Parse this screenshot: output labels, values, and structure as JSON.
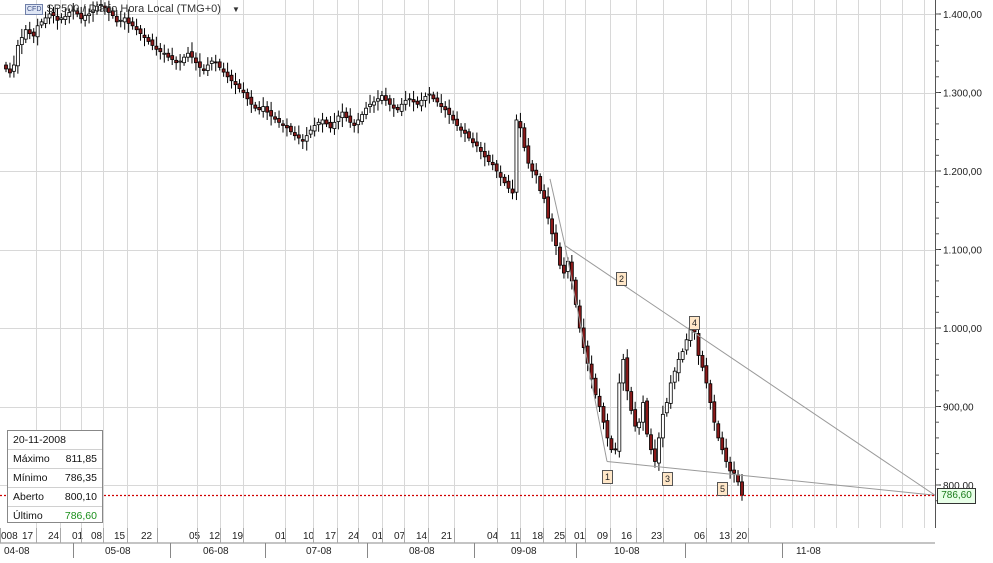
{
  "header": {
    "badge": "CFD",
    "title": "SP500 / Diario Hora Local (TMG+0)",
    "dropdown_icon": "caret-down-icon"
  },
  "info_panel": {
    "date": "20-11-2008",
    "rows": [
      {
        "label": "Máximo",
        "value": "811,85"
      },
      {
        "label": "Mínimo",
        "value": "786,35"
      },
      {
        "label": "Aberto",
        "value": "800,10"
      },
      {
        "label": "Último",
        "value": "786,60"
      }
    ]
  },
  "last_price_label": "786,60",
  "wave_labels": [
    "1",
    "2",
    "3",
    "4",
    "5"
  ],
  "colors": {
    "up_candle": "#ffffff",
    "down_candle": "#8b1a1a",
    "wick": "#000000",
    "grid": "#d8d8d8",
    "trendline": "#9a9a9a",
    "last_price_line": "#d00000"
  },
  "chart_data": {
    "type": "candlestick",
    "title": "SP500 / Diario Hora Local (TMG+0)",
    "xlabel": "",
    "ylabel": "",
    "ylim": [
      770,
      1420
    ],
    "y_ticks": [
      {
        "value": 1400,
        "label": "1.400,00"
      },
      {
        "value": 1300,
        "label": "1.300,00"
      },
      {
        "value": 1200,
        "label": "1.200,00"
      },
      {
        "value": 1100,
        "label": "1.100,00"
      },
      {
        "value": 1000,
        "label": "1.000,00"
      },
      {
        "value": 900,
        "label": "900,00"
      },
      {
        "value": 800,
        "label": "800,00"
      }
    ],
    "x_day_ticks": [
      "008",
      "17",
      "24",
      "01",
      "08",
      "15",
      "22",
      "05",
      "12",
      "19",
      "01",
      "10",
      "17",
      "24",
      "01",
      "07",
      "14",
      "21",
      "04",
      "11",
      "18",
      "25",
      "01",
      "09",
      "16",
      "23",
      "06",
      "13",
      "20"
    ],
    "x_month_ticks": [
      "04-08",
      "05-08",
      "06-08",
      "07-08",
      "08-08",
      "09-08",
      "10-08",
      "11-08"
    ],
    "last_price": 786.6,
    "series": [
      {
        "name": "SP500",
        "close": [
          1330,
          1325,
          1335,
          1360,
          1370,
          1380,
          1375,
          1372,
          1385,
          1390,
          1395,
          1400,
          1398,
          1392,
          1395,
          1397,
          1402,
          1405,
          1400,
          1394,
          1398,
          1400,
          1405,
          1410,
          1412,
          1408,
          1402,
          1398,
          1390,
          1392,
          1395,
          1388,
          1385,
          1380,
          1375,
          1370,
          1365,
          1360,
          1355,
          1352,
          1350,
          1345,
          1342,
          1338,
          1340,
          1345,
          1350,
          1345,
          1338,
          1332,
          1328,
          1335,
          1340,
          1338,
          1332,
          1326,
          1320,
          1315,
          1310,
          1305,
          1300,
          1292,
          1285,
          1280,
          1278,
          1282,
          1275,
          1270,
          1266,
          1262,
          1258,
          1255,
          1250,
          1245,
          1242,
          1238,
          1245,
          1252,
          1258,
          1262,
          1265,
          1260,
          1255,
          1262,
          1270,
          1275,
          1268,
          1262,
          1258,
          1265,
          1272,
          1280,
          1285,
          1288,
          1292,
          1296,
          1290,
          1285,
          1280,
          1278,
          1285,
          1290,
          1292,
          1288,
          1285,
          1290,
          1295,
          1298,
          1292,
          1288,
          1282,
          1278,
          1272,
          1265,
          1258,
          1252,
          1248,
          1242,
          1236,
          1232,
          1225,
          1218,
          1212,
          1208,
          1200,
          1192,
          1185,
          1178,
          1172,
          1265,
          1255,
          1230,
          1210,
          1200,
          1195,
          1175,
          1165,
          1140,
          1120,
          1105,
          1080,
          1070,
          1085,
          1060,
          1030,
          1000,
          975,
          955,
          935,
          915,
          900,
          880,
          860,
          845,
          845,
          930,
          960,
          920,
          895,
          875,
          880,
          905,
          865,
          845,
          830,
          860,
          890,
          905,
          930,
          945,
          960,
          970,
          985,
          1000,
          995,
          965,
          950,
          930,
          905,
          880,
          860,
          845,
          830,
          818,
          815,
          804,
          787
        ]
      }
    ],
    "wave_points": [
      {
        "label": "1",
        "value": 830
      },
      {
        "label": "2",
        "value": 1065
      },
      {
        "label": "3",
        "value": 818
      },
      {
        "label": "4",
        "value": 1005
      },
      {
        "label": "5",
        "value": 787
      }
    ]
  }
}
